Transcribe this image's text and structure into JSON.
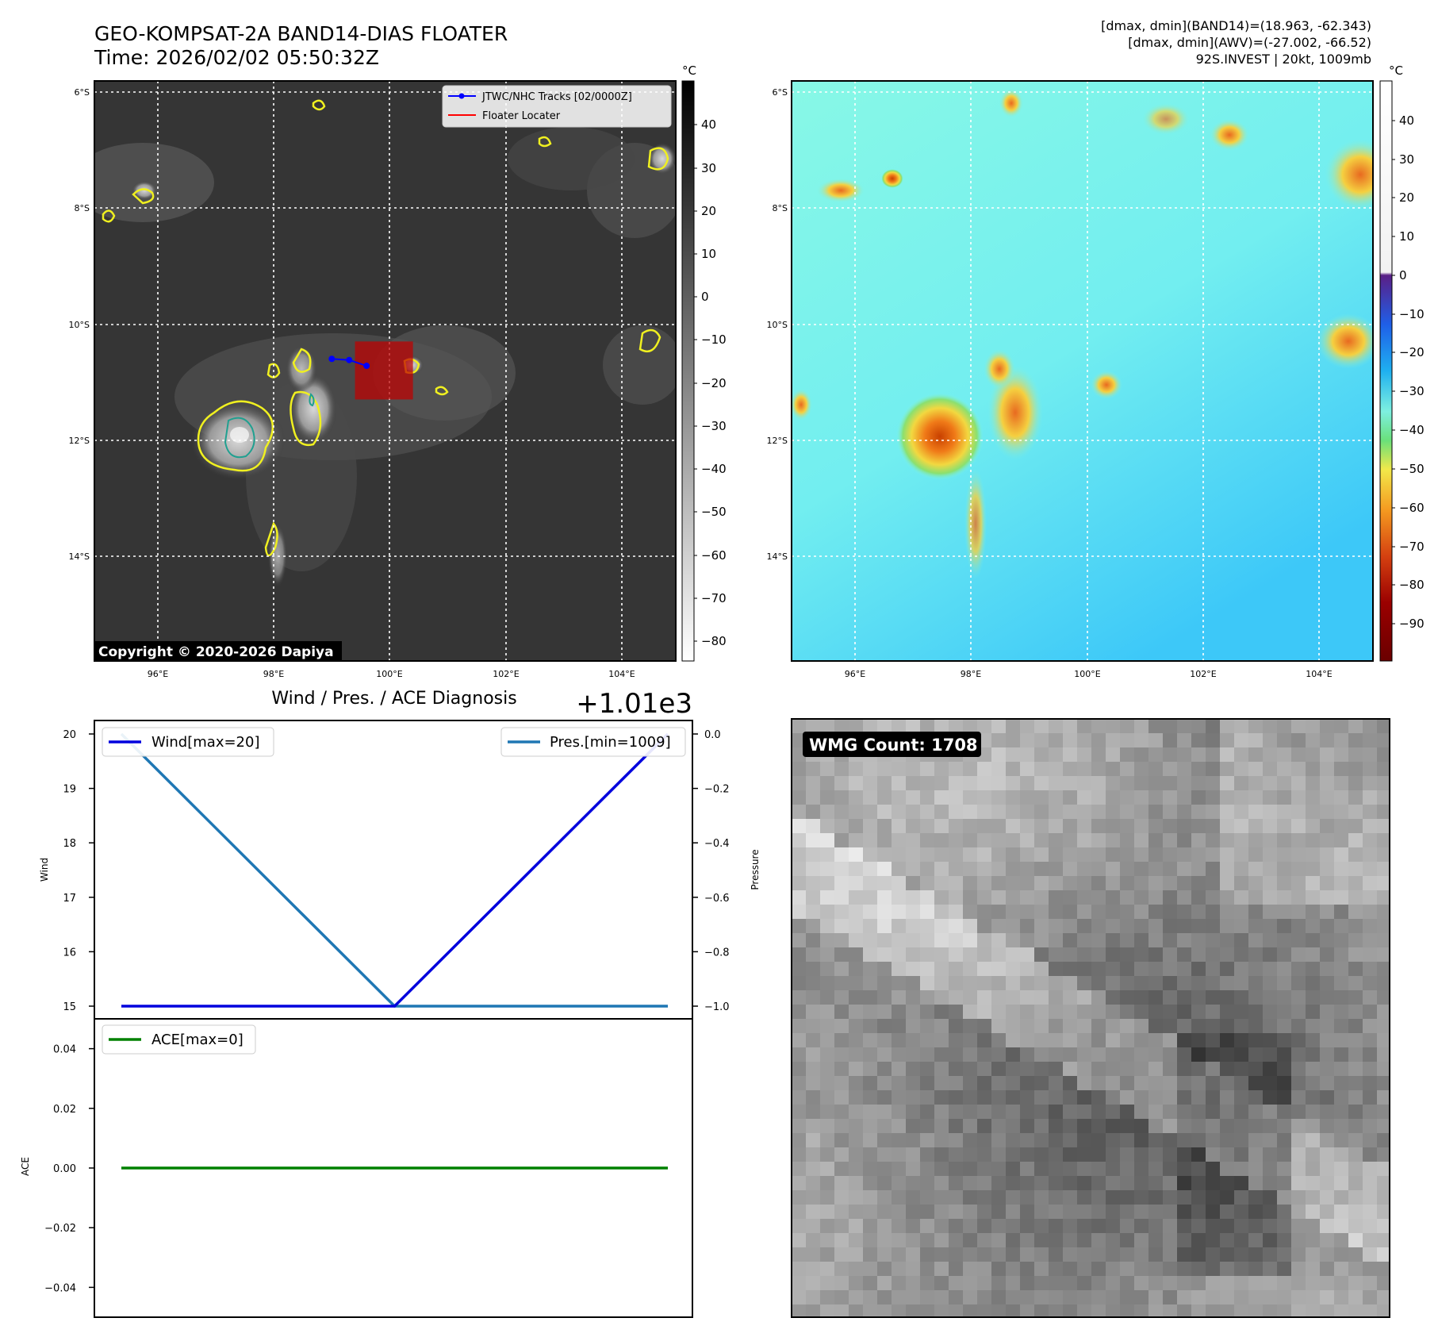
{
  "header": {
    "title_line1": "GEO-KOMPSAT-2A BAND14-DIAS FLOATER",
    "title_line2": "Time: 2026/02/02 05:50:32Z",
    "info_line1": "[dmax, dmin](BAND14)=(18.963, -62.343)",
    "info_line2": "[dmax, dmin](AWV)=(-27.002, -66.52)",
    "info_line3": "92S.INVEST | 20kt, 1009mb"
  },
  "map_left": {
    "lat_ticks": [
      "6°S",
      "8°S",
      "10°S",
      "12°S",
      "14°S"
    ],
    "lon_ticks": [
      "96°E",
      "98°E",
      "100°E",
      "102°E",
      "104°E"
    ],
    "legend": [
      {
        "label": "JTWC/NHC Tracks [02/0000Z]",
        "color": "#0000ff"
      },
      {
        "label": "Floater Locater",
        "color": "#ff0000"
      }
    ],
    "copyright": "Copyright © 2020-2026 Dapiya",
    "colorbar": {
      "unit": "°C",
      "ticks": [
        "40",
        "30",
        "20",
        "10",
        "0",
        "−10",
        "−20",
        "−30",
        "−40",
        "−50",
        "−60",
        "−70",
        "−80"
      ]
    },
    "track": {
      "color": "#0000ff",
      "points": [
        {
          "lon": 99.0,
          "lat": -10.6
        },
        {
          "lon": 99.3,
          "lat": -10.62
        },
        {
          "lon": 99.6,
          "lat": -10.72
        }
      ]
    },
    "floater": {
      "color": "#c00000",
      "lon": [
        99.4,
        100.4
      ],
      "lat": [
        -10.3,
        -11.3
      ]
    }
  },
  "map_right": {
    "lat_ticks": [
      "6°S",
      "8°S",
      "10°S",
      "12°S",
      "14°S"
    ],
    "lon_ticks": [
      "96°E",
      "98°E",
      "100°E",
      "102°E",
      "104°E"
    ],
    "colorbar": {
      "unit": "°C",
      "ticks": [
        "40",
        "30",
        "20",
        "10",
        "0",
        "−10",
        "−20",
        "−30",
        "−40",
        "−50",
        "−60",
        "−70",
        "−80",
        "−90"
      ]
    }
  },
  "chart_data": [
    {
      "type": "line",
      "title": "Wind / Pres. / ACE Diagnosis",
      "x": [
        0,
        1,
        2
      ],
      "ylabel": "Wind",
      "ylim": [
        15,
        20
      ],
      "yticks": [
        "20",
        "19",
        "18",
        "17",
        "16",
        "15"
      ],
      "y2label": "Pressure",
      "y2_offset": "+1.01e3",
      "y2lim": [
        -1.0,
        0.0
      ],
      "y2ticks": [
        "0.0",
        "−0.2",
        "−0.4",
        "−0.6",
        "−0.8",
        "−1.0"
      ],
      "series": [
        {
          "name": "Wind[max=20]",
          "axis": "left",
          "color": "#0000dd",
          "values": [
            15,
            15,
            20
          ]
        },
        {
          "name": "Pres.[min=1009]",
          "axis": "right",
          "color": "#1f77b4",
          "values": [
            0.0,
            -1.0,
            -1.0
          ]
        }
      ],
      "legend": [
        "upper-left",
        "upper-right"
      ]
    },
    {
      "type": "line",
      "x": [
        0,
        1,
        2
      ],
      "ylabel": "ACE",
      "ylim": [
        -0.05,
        0.05
      ],
      "yticks": [
        "0.04",
        "0.02",
        "0.00",
        "−0.02",
        "−0.04"
      ],
      "series": [
        {
          "name": "ACE[max=0]",
          "color": "#008000",
          "values": [
            0,
            0,
            0
          ]
        }
      ],
      "legend": "upper-left"
    }
  ],
  "wmg": {
    "label": "WMG Count: 1708"
  }
}
